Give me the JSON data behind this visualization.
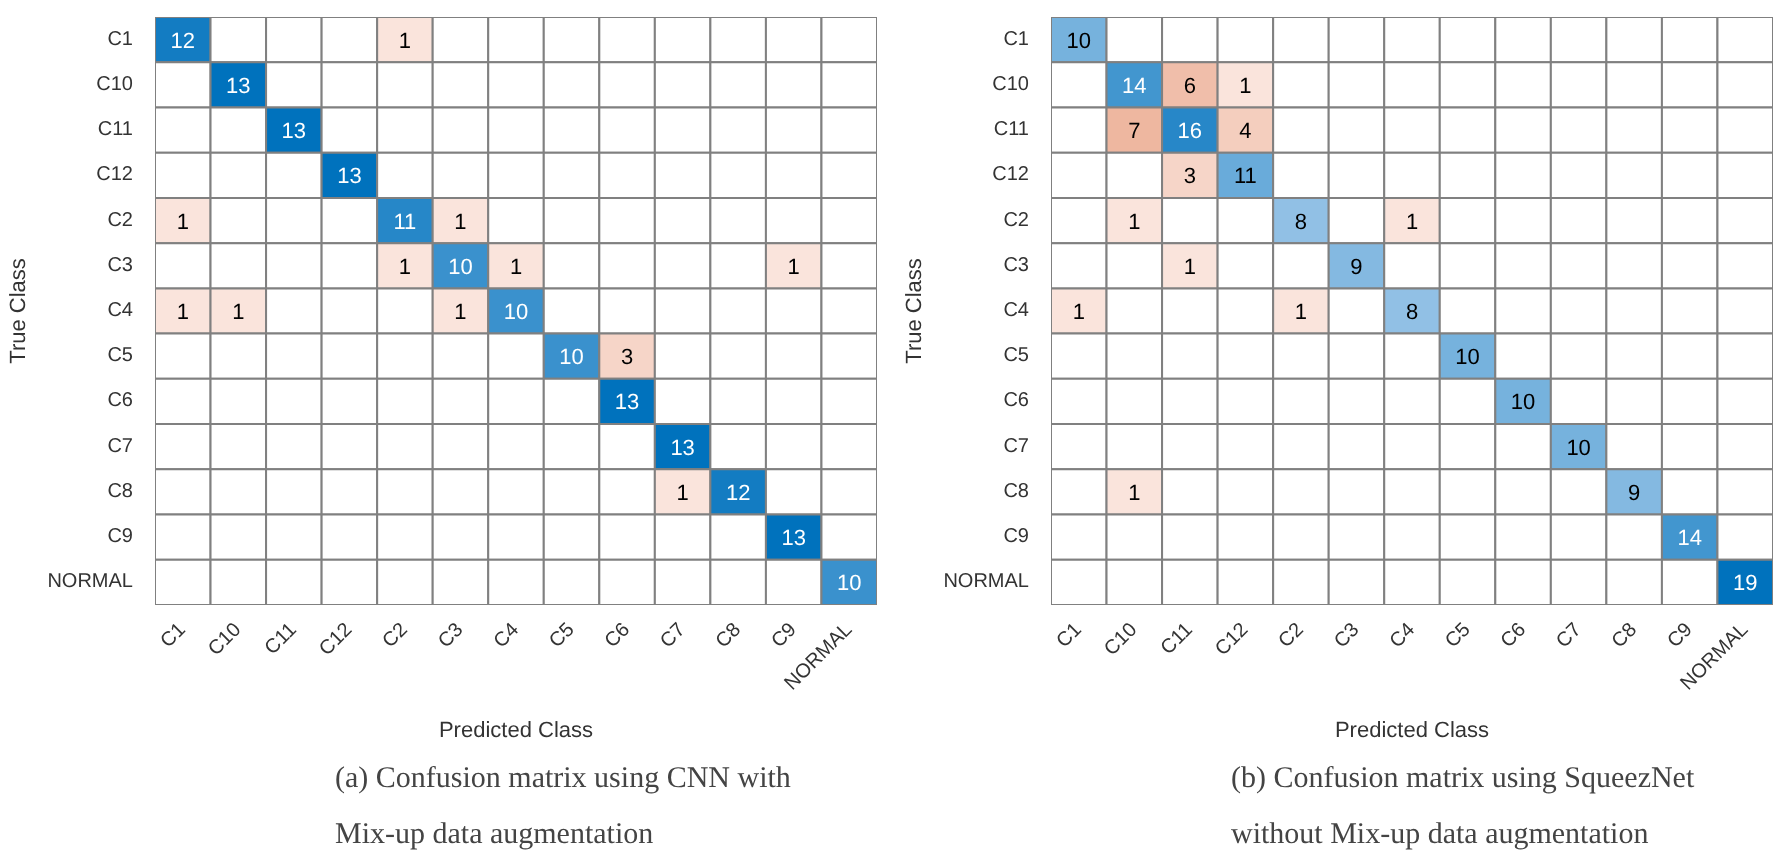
{
  "chart_data": [
    {
      "type": "heatmap",
      "data_labels": true,
      "xlabel": "Predicted Class",
      "ylabel": "True Class",
      "annotations": [
        "(a) Confusion matrix using CNN with\nMix-up data augmentation"
      ],
      "categories": [
        "C1",
        "C10",
        "C11",
        "C12",
        "C2",
        "C3",
        "C4",
        "C5",
        "C6",
        "C7",
        "C8",
        "C9",
        "NORMAL"
      ],
      "y_categories": [
        "C1",
        "C10",
        "C11",
        "C12",
        "C2",
        "C3",
        "C4",
        "C5",
        "C6",
        "C7",
        "C8",
        "C9",
        "NORMAL"
      ],
      "cells": [
        [
          12,
          null,
          null,
          null,
          1,
          null,
          null,
          null,
          null,
          null,
          null,
          null,
          null
        ],
        [
          null,
          13,
          null,
          null,
          null,
          null,
          null,
          null,
          null,
          null,
          null,
          null,
          null
        ],
        [
          null,
          null,
          13,
          null,
          null,
          null,
          null,
          null,
          null,
          null,
          null,
          null,
          null
        ],
        [
          null,
          null,
          null,
          13,
          null,
          null,
          null,
          null,
          null,
          null,
          null,
          null,
          null
        ],
        [
          1,
          null,
          null,
          null,
          11,
          1,
          null,
          null,
          null,
          null,
          null,
          null,
          null
        ],
        [
          null,
          null,
          null,
          null,
          1,
          10,
          1,
          null,
          null,
          null,
          null,
          1,
          null
        ],
        [
          1,
          1,
          null,
          null,
          null,
          1,
          10,
          null,
          null,
          null,
          null,
          null,
          null
        ],
        [
          null,
          null,
          null,
          null,
          null,
          null,
          null,
          10,
          3,
          null,
          null,
          null,
          null
        ],
        [
          null,
          null,
          null,
          null,
          null,
          null,
          null,
          null,
          13,
          null,
          null,
          null,
          null
        ],
        [
          null,
          null,
          null,
          null,
          null,
          null,
          null,
          null,
          null,
          13,
          null,
          null,
          null
        ],
        [
          null,
          null,
          null,
          null,
          null,
          null,
          null,
          null,
          null,
          1,
          12,
          null,
          null
        ],
        [
          null,
          null,
          null,
          null,
          null,
          null,
          null,
          null,
          null,
          null,
          null,
          13,
          null
        ],
        [
          null,
          null,
          null,
          null,
          null,
          null,
          null,
          null,
          null,
          null,
          null,
          null,
          10
        ]
      ]
    },
    {
      "type": "heatmap",
      "data_labels": true,
      "xlabel": "Predicted Class",
      "ylabel": "True Class",
      "annotations": [
        "(b) Confusion matrix using SqueezNet\nwithout Mix-up data augmentation"
      ],
      "categories": [
        "C1",
        "C10",
        "C11",
        "C12",
        "C2",
        "C3",
        "C4",
        "C5",
        "C6",
        "C7",
        "C8",
        "C9",
        "NORMAL"
      ],
      "y_categories": [
        "C1",
        "C10",
        "C11",
        "C12",
        "C2",
        "C3",
        "C4",
        "C5",
        "C6",
        "C7",
        "C8",
        "C9",
        "NORMAL"
      ],
      "cells": [
        [
          10,
          null,
          null,
          null,
          null,
          null,
          null,
          null,
          null,
          null,
          null,
          null,
          null
        ],
        [
          null,
          14,
          6,
          1,
          null,
          null,
          null,
          null,
          null,
          null,
          null,
          null,
          null
        ],
        [
          null,
          7,
          16,
          4,
          null,
          null,
          null,
          null,
          null,
          null,
          null,
          null,
          null
        ],
        [
          null,
          null,
          3,
          11,
          null,
          null,
          null,
          null,
          null,
          null,
          null,
          null,
          null
        ],
        [
          null,
          1,
          null,
          null,
          8,
          null,
          1,
          null,
          null,
          null,
          null,
          null,
          null
        ],
        [
          null,
          null,
          1,
          null,
          null,
          9,
          null,
          null,
          null,
          null,
          null,
          null,
          null
        ],
        [
          1,
          null,
          null,
          null,
          1,
          null,
          8,
          null,
          null,
          null,
          null,
          null,
          null
        ],
        [
          null,
          null,
          null,
          null,
          null,
          null,
          null,
          10,
          null,
          null,
          null,
          null,
          null
        ],
        [
          null,
          null,
          null,
          null,
          null,
          null,
          null,
          null,
          10,
          null,
          null,
          null,
          null
        ],
        [
          null,
          null,
          null,
          null,
          null,
          null,
          null,
          null,
          null,
          10,
          null,
          null,
          null
        ],
        [
          null,
          1,
          null,
          null,
          null,
          null,
          null,
          null,
          null,
          null,
          9,
          null,
          null
        ],
        [
          null,
          null,
          null,
          null,
          null,
          null,
          null,
          null,
          null,
          null,
          null,
          14,
          null
        ],
        [
          null,
          null,
          null,
          null,
          null,
          null,
          null,
          null,
          null,
          null,
          null,
          null,
          19
        ]
      ]
    }
  ]
}
